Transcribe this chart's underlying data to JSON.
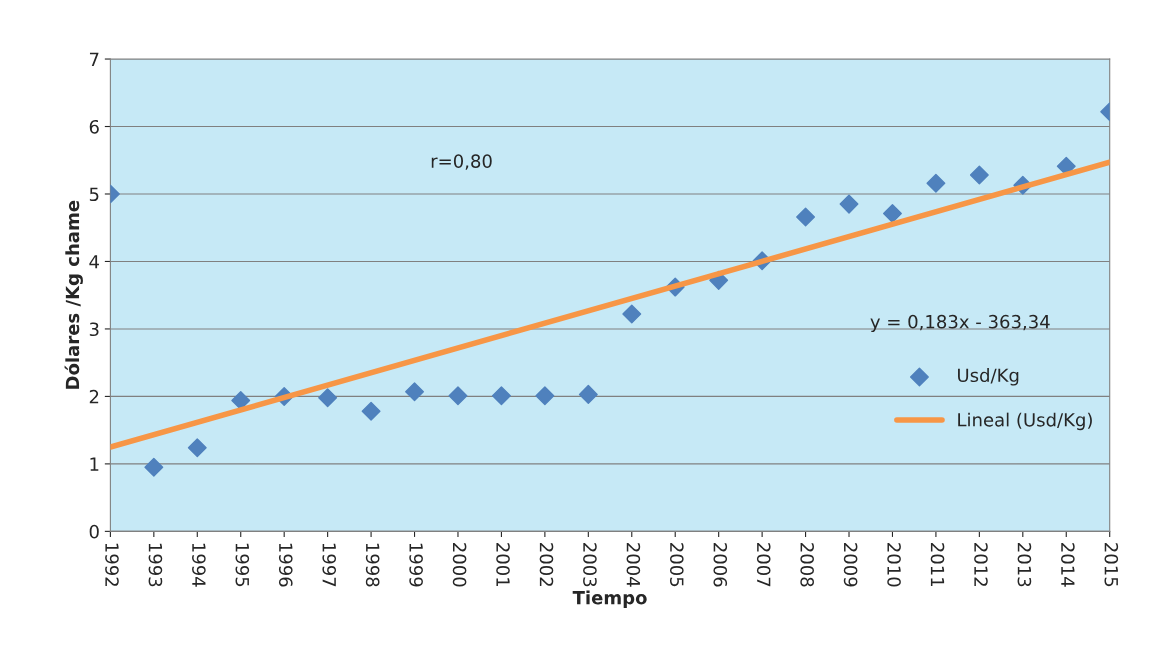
{
  "chart_data": {
    "type": "scatter",
    "xlabel": "Tiempo",
    "ylabel": "Dólares /Kg chame",
    "x": [
      1992,
      1993,
      1994,
      1995,
      1996,
      1997,
      1998,
      1999,
      2000,
      2001,
      2002,
      2003,
      2004,
      2005,
      2006,
      2007,
      2008,
      2009,
      2010,
      2011,
      2012,
      2013,
      2014,
      2015
    ],
    "series": [
      {
        "name": "Usd/Kg",
        "color": "#4f81bd",
        "marker": "diamond",
        "values": [
          5.0,
          0.95,
          1.24,
          1.94,
          2.0,
          1.98,
          1.78,
          2.07,
          2.01,
          2.01,
          2.01,
          2.03,
          3.22,
          3.62,
          3.72,
          4.01,
          4.66,
          4.85,
          4.71,
          5.16,
          5.28,
          5.13,
          5.41,
          6.22
        ]
      },
      {
        "name": "Lineal (Usd/Kg)",
        "type": "line",
        "color": "#f79646",
        "marker": "none",
        "line_style": "solid",
        "x": [
          1992,
          2015
        ],
        "values": [
          1.25,
          5.47
        ]
      }
    ],
    "annotations": [
      "r=0,80",
      "y = 0,183x - 363,34"
    ],
    "xlim": [
      1992,
      2015
    ],
    "xticks": [
      1992,
      1993,
      1994,
      1995,
      1996,
      1997,
      1998,
      1999,
      2000,
      2001,
      2002,
      2003,
      2004,
      2005,
      2006,
      2007,
      2008,
      2009,
      2010,
      2011,
      2012,
      2013,
      2014,
      2015
    ],
    "ylim": [
      0,
      7
    ],
    "yticks": [
      0,
      1,
      2,
      3,
      4,
      5,
      6,
      7
    ],
    "grid": "y",
    "legend": "right"
  }
}
